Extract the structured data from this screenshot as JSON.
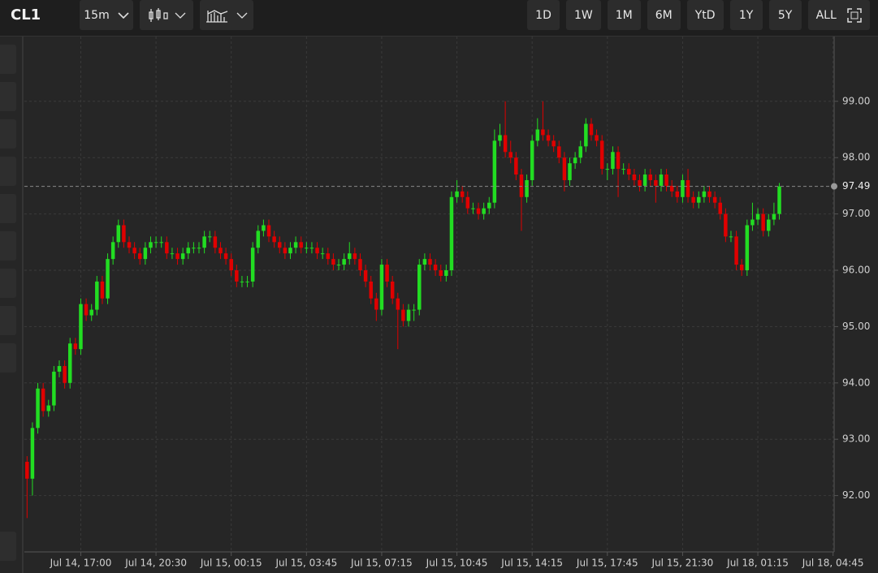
{
  "toolbar": {
    "symbol": "CL1",
    "interval": "15m",
    "ranges": [
      "1D",
      "1W",
      "1M",
      "6M",
      "YtD",
      "1Y",
      "5Y",
      "ALL"
    ]
  },
  "chart_data": {
    "type": "candlestick",
    "up_color": "#22dd22",
    "down_color": "#e00000",
    "grid": true,
    "xlim": [
      -0.5,
      150.2
    ],
    "xticks": [
      {
        "value": 10,
        "label": "Jul 14, 17:00"
      },
      {
        "value": 24,
        "label": "Jul 14, 20:30"
      },
      {
        "value": 38,
        "label": "Jul 15, 00:15"
      },
      {
        "value": 52,
        "label": "Jul 15, 03:45"
      },
      {
        "value": 66,
        "label": "Jul 15, 07:15"
      },
      {
        "value": 80,
        "label": "Jul 15, 10:45"
      },
      {
        "value": 94,
        "label": "Jul 15, 14:15"
      },
      {
        "value": 108,
        "label": "Jul 15, 17:45"
      },
      {
        "value": 122,
        "label": "Jul 15, 21:30"
      },
      {
        "value": 136,
        "label": "Jul 18, 01:15"
      },
      {
        "value": 150,
        "label": "Jul 18, 04:45"
      }
    ],
    "ylim": [
      91.0,
      100.15
    ],
    "yticks": [
      {
        "value": 92,
        "label": "92.00"
      },
      {
        "value": 93,
        "label": "93.00"
      },
      {
        "value": 94,
        "label": "94.00"
      },
      {
        "value": 95,
        "label": "95.00"
      },
      {
        "value": 96,
        "label": "96.00"
      },
      {
        "value": 97,
        "label": "97.00"
      },
      {
        "value": 98,
        "label": "98.00"
      },
      {
        "value": 99,
        "label": "99.00"
      }
    ],
    "open": [
      92.6,
      92.3,
      93.2,
      93.9,
      93.5,
      93.6,
      94.2,
      94.3,
      94.0,
      94.7,
      94.6,
      95.4,
      95.2,
      95.3,
      95.8,
      95.5,
      96.2,
      96.5,
      96.8,
      96.5,
      96.4,
      96.3,
      96.2,
      96.4,
      96.5,
      96.5,
      96.5,
      96.3,
      96.3,
      96.2,
      96.3,
      96.4,
      96.4,
      96.4,
      96.6,
      96.6,
      96.4,
      96.3,
      96.2,
      96.0,
      95.8,
      95.8,
      95.8,
      96.4,
      96.7,
      96.8,
      96.6,
      96.5,
      96.4,
      96.3,
      96.4,
      96.5,
      96.4,
      96.4,
      96.4,
      96.3,
      96.3,
      96.2,
      96.1,
      96.1,
      96.2,
      96.3,
      96.2,
      96.0,
      95.8,
      95.5,
      95.3,
      96.1,
      95.8,
      95.5,
      95.3,
      95.1,
      95.3,
      95.3,
      96.1,
      96.2,
      96.1,
      96.0,
      95.9,
      96.0,
      97.3,
      97.4,
      97.3,
      97.1,
      97.1,
      97.0,
      97.1,
      97.2,
      98.3,
      98.4,
      98.1,
      98.0,
      97.7,
      97.3,
      97.6,
      98.3,
      98.5,
      98.4,
      98.3,
      98.2,
      98.0,
      97.6,
      97.9,
      98.0,
      98.2,
      98.6,
      98.4,
      98.3,
      97.8,
      97.8,
      98.1,
      97.8,
      97.8,
      97.7,
      97.6,
      97.5,
      97.7,
      97.6,
      97.5,
      97.7,
      97.5,
      97.4,
      97.3,
      97.6,
      97.3,
      97.2,
      97.3,
      97.4,
      97.3,
      97.2,
      97.0,
      96.6,
      96.6,
      96.1,
      96.0,
      96.8,
      96.9,
      97.0,
      96.7,
      96.9,
      97.0
    ],
    "high": [
      92.7,
      93.3,
      94.0,
      94.0,
      93.7,
      94.3,
      94.4,
      94.4,
      94.8,
      94.8,
      95.5,
      95.5,
      95.4,
      95.9,
      95.9,
      96.3,
      96.6,
      96.9,
      96.9,
      96.6,
      96.5,
      96.4,
      96.5,
      96.6,
      96.6,
      96.6,
      96.6,
      96.4,
      96.4,
      96.4,
      96.5,
      96.5,
      96.5,
      96.7,
      96.7,
      96.7,
      96.5,
      96.4,
      96.3,
      96.1,
      95.9,
      95.9,
      96.5,
      96.8,
      96.9,
      96.9,
      96.7,
      96.6,
      96.5,
      96.5,
      96.6,
      96.6,
      96.5,
      96.5,
      96.5,
      96.4,
      96.4,
      96.3,
      96.2,
      96.3,
      96.5,
      96.4,
      96.3,
      96.1,
      95.9,
      95.6,
      96.2,
      96.2,
      95.9,
      95.6,
      95.4,
      95.4,
      95.4,
      96.2,
      96.3,
      96.3,
      96.2,
      96.1,
      96.1,
      97.4,
      97.6,
      97.5,
      97.4,
      97.2,
      97.2,
      97.2,
      97.3,
      98.5,
      98.6,
      99.0,
      98.3,
      98.1,
      97.8,
      97.7,
      98.4,
      98.7,
      99.0,
      98.5,
      98.4,
      98.3,
      98.1,
      98.0,
      98.1,
      98.3,
      98.7,
      98.7,
      98.5,
      98.4,
      97.9,
      98.2,
      98.2,
      97.9,
      97.9,
      97.8,
      97.7,
      97.8,
      97.8,
      97.7,
      97.8,
      97.8,
      97.6,
      97.5,
      97.7,
      97.8,
      97.4,
      97.4,
      97.5,
      97.5,
      97.4,
      97.3,
      97.1,
      96.7,
      96.7,
      96.2,
      96.9,
      97.2,
      97.1,
      97.1,
      97.0,
      97.2,
      97.55
    ],
    "low": [
      91.6,
      92.0,
      93.1,
      93.4,
      93.4,
      93.5,
      94.1,
      93.9,
      93.9,
      94.5,
      94.5,
      95.1,
      95.1,
      95.2,
      95.4,
      95.4,
      96.1,
      96.4,
      96.4,
      96.3,
      96.2,
      96.1,
      96.1,
      96.3,
      96.4,
      96.4,
      96.2,
      96.2,
      96.1,
      96.1,
      96.2,
      96.3,
      96.3,
      96.3,
      96.5,
      96.3,
      96.2,
      96.1,
      95.9,
      95.7,
      95.7,
      95.7,
      95.7,
      96.3,
      96.6,
      96.5,
      96.4,
      96.3,
      96.2,
      96.2,
      96.3,
      96.3,
      96.3,
      96.3,
      96.2,
      96.2,
      96.1,
      96.0,
      96.0,
      96.0,
      96.1,
      96.1,
      95.9,
      95.7,
      95.4,
      95.1,
      95.2,
      95.7,
      95.4,
      94.6,
      95.0,
      95.0,
      95.1,
      95.2,
      96.0,
      96.0,
      95.9,
      95.8,
      95.8,
      95.9,
      97.2,
      97.2,
      97.0,
      97.0,
      96.9,
      96.9,
      97.0,
      97.1,
      98.2,
      98.0,
      97.9,
      97.6,
      96.7,
      97.2,
      97.5,
      98.2,
      98.3,
      98.2,
      98.1,
      97.9,
      97.4,
      97.5,
      97.8,
      97.9,
      98.1,
      98.3,
      98.2,
      97.7,
      97.6,
      97.7,
      97.3,
      97.7,
      97.6,
      97.5,
      97.4,
      97.4,
      97.5,
      97.2,
      97.4,
      97.4,
      97.3,
      97.2,
      97.2,
      97.2,
      97.1,
      97.1,
      97.2,
      97.2,
      97.1,
      96.9,
      96.5,
      96.5,
      96.0,
      95.9,
      95.9,
      96.7,
      96.8,
      96.6,
      96.6,
      96.8,
      96.9
    ],
    "close": [
      92.3,
      93.2,
      93.9,
      93.5,
      93.6,
      94.2,
      94.3,
      94.0,
      94.7,
      94.6,
      95.4,
      95.2,
      95.3,
      95.8,
      95.5,
      96.2,
      96.5,
      96.8,
      96.5,
      96.4,
      96.3,
      96.2,
      96.4,
      96.5,
      96.5,
      96.5,
      96.3,
      96.3,
      96.2,
      96.3,
      96.4,
      96.4,
      96.4,
      96.6,
      96.6,
      96.4,
      96.3,
      96.2,
      96.0,
      95.8,
      95.8,
      95.8,
      96.4,
      96.7,
      96.8,
      96.6,
      96.5,
      96.4,
      96.3,
      96.4,
      96.5,
      96.4,
      96.4,
      96.4,
      96.3,
      96.3,
      96.2,
      96.1,
      96.1,
      96.2,
      96.3,
      96.2,
      96.0,
      95.8,
      95.5,
      95.3,
      96.1,
      95.8,
      95.5,
      95.3,
      95.1,
      95.3,
      95.3,
      96.1,
      96.2,
      96.1,
      96.0,
      95.9,
      96.0,
      97.3,
      97.4,
      97.3,
      97.1,
      97.1,
      97.0,
      97.1,
      97.2,
      98.3,
      98.4,
      98.1,
      98.0,
      97.7,
      97.3,
      97.6,
      98.3,
      98.5,
      98.4,
      98.3,
      98.2,
      98.0,
      97.6,
      97.9,
      98.0,
      98.2,
      98.6,
      98.4,
      98.3,
      97.8,
      97.8,
      98.1,
      97.8,
      97.8,
      97.7,
      97.6,
      97.5,
      97.7,
      97.6,
      97.5,
      97.7,
      97.5,
      97.4,
      97.3,
      97.6,
      97.3,
      97.2,
      97.3,
      97.4,
      97.3,
      97.2,
      97.0,
      96.6,
      96.6,
      96.1,
      96.0,
      96.8,
      96.9,
      97.0,
      96.7,
      96.9,
      97.0,
      97.49
    ]
  }
}
